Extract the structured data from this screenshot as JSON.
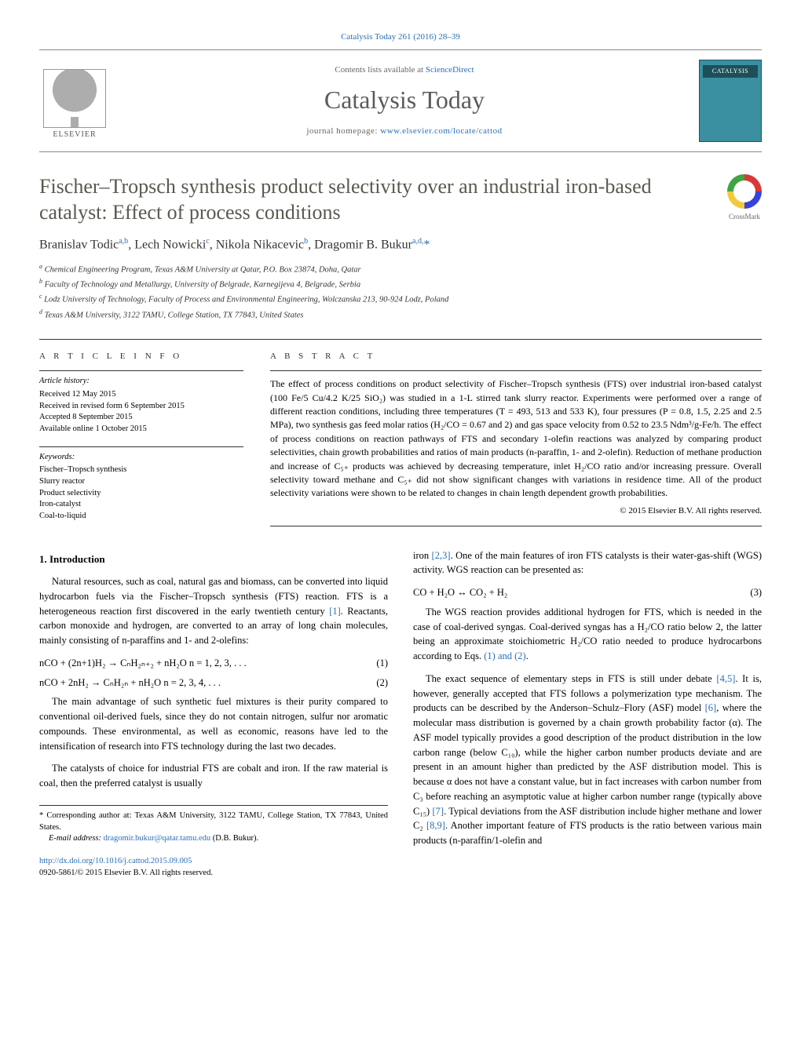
{
  "journal_ref": "Catalysis Today 261 (2016) 28–39",
  "header": {
    "contents_prefix": "Contents lists available at ",
    "contents_link": "ScienceDirect",
    "journal_title": "Catalysis Today",
    "homepage_prefix": "journal homepage: ",
    "homepage_url": "www.elsevier.com/locate/cattod",
    "elsevier_label": "ELSEVIER",
    "cover_label": "CATALYSIS"
  },
  "crossmark_label": "CrossMark",
  "title": "Fischer–Tropsch synthesis product selectivity over an industrial iron-based catalyst: Effect of process conditions",
  "authors_html": "Branislav Todic<sup>a,b</sup>, Lech Nowicki<sup>c</sup>, Nikola Nikacevic<sup>b</sup>, Dragomir B. Bukur<sup>a,d,</sup><span class='corr-star'>*</span>",
  "affiliations": [
    "a  Chemical Engineering Program, Texas A&M University at Qatar, P.O. Box 23874, Doha, Qatar",
    "b  Faculty of Technology and Metallurgy, University of Belgrade, Karnegijeva 4, Belgrade, Serbia",
    "c  Lodz University of Technology, Faculty of Process and Environmental Engineering, Wolczanska 213, 90-924 Lodz, Poland",
    "d  Texas A&M University, 3122 TAMU, College Station, TX 77843, United States"
  ],
  "article_info": {
    "head": "a r t i c l e   i n f o",
    "history_label": "Article history:",
    "history": [
      "Received 12 May 2015",
      "Received in revised form 6 September 2015",
      "Accepted 8 September 2015",
      "Available online 1 October 2015"
    ],
    "keywords_label": "Keywords:",
    "keywords": [
      "Fischer–Tropsch synthesis",
      "Slurry reactor",
      "Product selectivity",
      "Iron-catalyst",
      "Coal-to-liquid"
    ]
  },
  "abstract": {
    "head": "a b s t r a c t",
    "body": "The effect of process conditions on product selectivity of Fischer–Tropsch synthesis (FTS) over industrial iron-based catalyst (100 Fe/5 Cu/4.2 K/25 SiO₂) was studied in a 1-L stirred tank slurry reactor. Experiments were performed over a range of different reaction conditions, including three temperatures (T = 493, 513 and 533 K), four pressures (P = 0.8, 1.5, 2.25 and 2.5 MPa), two synthesis gas feed molar ratios (H₂/CO = 0.67 and 2) and gas space velocity from 0.52 to 23.5 Ndm³/g-Fe/h. The effect of process conditions on reaction pathways of FTS and secondary 1-olefin reactions was analyzed by comparing product selectivities, chain growth probabilities and ratios of main products (n-paraffin, 1- and 2-olefin). Reduction of methane production and increase of C₅₊ products was achieved by decreasing temperature, inlet H₂/CO ratio and/or increasing pressure. Overall selectivity toward methane and C₅₊ did not show significant changes with variations in residence time. All of the product selectivity variations were shown to be related to changes in chain length dependent growth probabilities.",
    "copyright": "© 2015 Elsevier B.V. All rights reserved."
  },
  "body": {
    "sec1_title": "1.  Introduction",
    "p1": "Natural resources, such as coal, natural gas and biomass, can be converted into liquid hydrocarbon fuels via the Fischer–Tropsch synthesis (FTS) reaction. FTS is a heterogeneous reaction first discovered in the early twentieth century ",
    "p1_ref": "[1]",
    "p1b": ". Reactants, carbon monoxide and hydrogen, are converted to an array of long chain molecules, mainly consisting of n-paraffins and 1- and 2-olefins:",
    "eq1": "nCO + (2n+1)H₂ → CₙH₂ₙ₊₂ + nH₂O      n = 1, 2, 3, . . .",
    "eq1_num": "(1)",
    "eq2": "nCO + 2nH₂ → CₙH₂ₙ + nH₂O      n = 2, 3, 4, . . .",
    "eq2_num": "(2)",
    "p2": "The main advantage of such synthetic fuel mixtures is their purity compared to conventional oil-derived fuels, since they do not contain nitrogen, sulfur nor aromatic compounds. These environmental, as well as economic, reasons have led to the intensification of research into FTS technology during the last two decades.",
    "p3a": "The catalysts of choice for industrial FTS are cobalt and iron. If the raw material is coal, then the preferred catalyst is usually ",
    "p3b": "iron ",
    "p3_ref": "[2,3]",
    "p3c": ". One of the main features of iron FTS catalysts is their water-gas-shift (WGS) activity. WGS reaction can be presented as:",
    "eq3": "CO + H₂O ↔ CO₂ + H₂",
    "eq3_num": "(3)",
    "p4a": "The WGS reaction provides additional hydrogen for FTS, which is needed in the case of coal-derived syngas. Coal-derived syngas has a H₂/CO ratio below 2, the latter being an approximate stoichiometric H₂/CO ratio needed to produce hydrocarbons according to Eqs. ",
    "p4_ref": "(1) and (2)",
    "p4b": ".",
    "p5a": "The exact sequence of elementary steps in FTS is still under debate ",
    "p5_ref1": "[4,5]",
    "p5b": ". It is, however, generally accepted that FTS follows a polymerization type mechanism. The products can be described by the Anderson–Schulz–Flory (ASF) model ",
    "p5_ref2": "[6]",
    "p5c": ", where the molecular mass distribution is governed by a chain growth probability factor (α). The ASF model typically provides a good description of the product distribution in the low carbon range (below C₁₀), while the higher carbon number products deviate and are present in an amount higher than predicted by the ASF distribution model. This is because α does not have a constant value, but in fact increases with carbon number from C₃ before reaching an asymptotic value at higher carbon number range (typically above C₁₅) ",
    "p5_ref3": "[7]",
    "p5d": ". Typical deviations from the ASF distribution include higher methane and lower C₂ ",
    "p5_ref4": "[8,9]",
    "p5e": ". Another important feature of FTS products is the ratio between various main products (n-paraffin/1-olefin and"
  },
  "corr": {
    "note": "* Corresponding author at: Texas A&M University, 3122 TAMU, College Station, TX 77843, United States.",
    "email_label": "E-mail address: ",
    "email": "dragomir.bukur@qatar.tamu.edu",
    "email_suffix": " (D.B. Bukur)."
  },
  "footer": {
    "doi": "http://dx.doi.org/10.1016/j.cattod.2015.09.005",
    "issn": "0920-5861/© 2015 Elsevier B.V. All rights reserved."
  },
  "colors": {
    "link": "#2a6fb5",
    "title_gray": "#59594f",
    "body_text": "#000000"
  }
}
